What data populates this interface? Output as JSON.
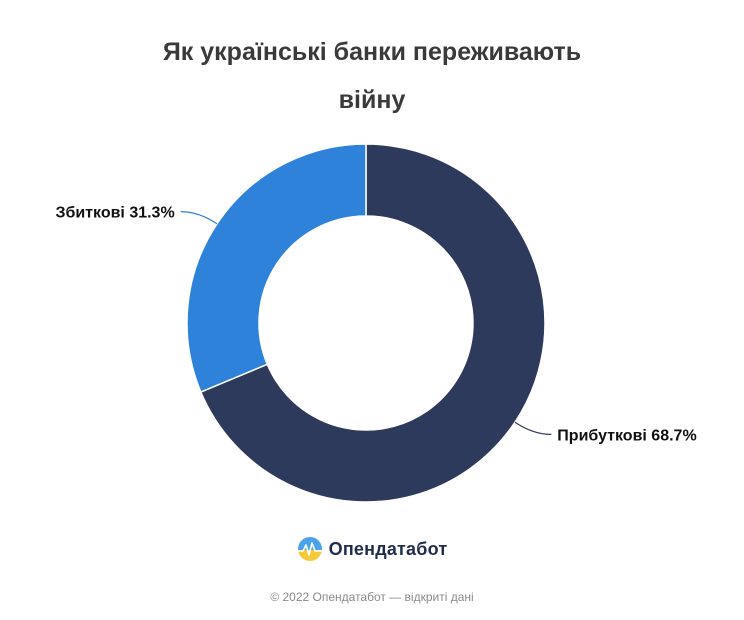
{
  "chart_data": {
    "type": "pie",
    "title_lines": [
      "Як українські банки переживають",
      "війну"
    ],
    "slices": [
      {
        "label": "Прибуткові",
        "value": 68.7,
        "value_text": "68.7%",
        "color": "#2d3a5c"
      },
      {
        "label": "Збиткові",
        "value": 31.3,
        "value_text": "31.3%",
        "color": "#2f82d9"
      }
    ],
    "donut": true,
    "start": "top",
    "direction": "clockwise"
  },
  "logo": {
    "name": "Опендатабот",
    "icon": "opendatabot-logo-icon"
  },
  "footer": {
    "text": "© 2022 Опендатабот — відкриті дані"
  }
}
